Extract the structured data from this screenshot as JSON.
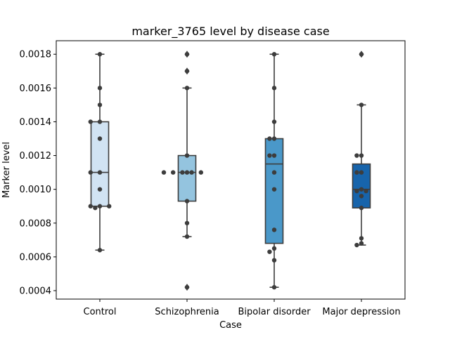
{
  "chart_data": {
    "type": "box",
    "title": "marker_3765 level by disease case",
    "xlabel": "Case",
    "ylabel": "Marker level",
    "ylim": [
      0.00035,
      0.00188
    ],
    "yticks": [
      0.0004,
      0.0006,
      0.0008,
      0.001,
      0.0012,
      0.0014,
      0.0016,
      0.0018
    ],
    "ytick_labels": [
      "0.0004",
      "0.0006",
      "0.0008",
      "0.0010",
      "0.0012",
      "0.0014",
      "0.0016",
      "0.0018"
    ],
    "categories": [
      "Control",
      "Schizophrenia",
      "Bipolar disorder",
      "Major depression"
    ],
    "colors": [
      "#d1e3f3",
      "#94c4df",
      "#4a98c9",
      "#1764ab"
    ],
    "boxes": [
      {
        "category": "Control",
        "whisker_low": 0.00064,
        "q1": 0.0009,
        "median": 0.0011,
        "q3": 0.0014,
        "whisker_high": 0.0018,
        "outliers": []
      },
      {
        "category": "Schizophrenia",
        "whisker_low": 0.00072,
        "q1": 0.00093,
        "median": 0.0011,
        "q3": 0.0012,
        "whisker_high": 0.0016,
        "outliers": [
          0.0018,
          0.0017,
          0.00042
        ]
      },
      {
        "category": "Bipolar disorder",
        "whisker_low": 0.00042,
        "q1": 0.00068,
        "median": 0.00115,
        "q3": 0.0013,
        "whisker_high": 0.0018,
        "outliers": []
      },
      {
        "category": "Major depression",
        "whisker_low": 0.00067,
        "q1": 0.00089,
        "median": 0.001,
        "q3": 0.00115,
        "whisker_high": 0.0015,
        "outliers": [
          0.0018
        ]
      }
    ],
    "points": [
      [
        0.0018,
        0.0016,
        0.0015,
        0.0014,
        0.0014,
        0.0013,
        0.0011,
        0.0011,
        0.001,
        0.0009,
        0.0009,
        0.00089,
        0.0009,
        0.00064
      ],
      [
        0.0018,
        0.0017,
        0.0016,
        0.0012,
        0.0011,
        0.0011,
        0.0011,
        0.0011,
        0.0011,
        0.0011,
        0.00093,
        0.0008,
        0.00072,
        0.00042
      ],
      [
        0.0018,
        0.0016,
        0.0014,
        0.0013,
        0.0013,
        0.0012,
        0.0012,
        0.0011,
        0.001,
        0.00076,
        0.00065,
        0.00063,
        0.00058,
        0.00042
      ],
      [
        0.0018,
        0.0015,
        0.0012,
        0.0012,
        0.0011,
        0.0011,
        0.001,
        0.00099,
        0.00099,
        0.00096,
        0.00089,
        0.00071,
        0.00068,
        0.00067
      ]
    ]
  }
}
